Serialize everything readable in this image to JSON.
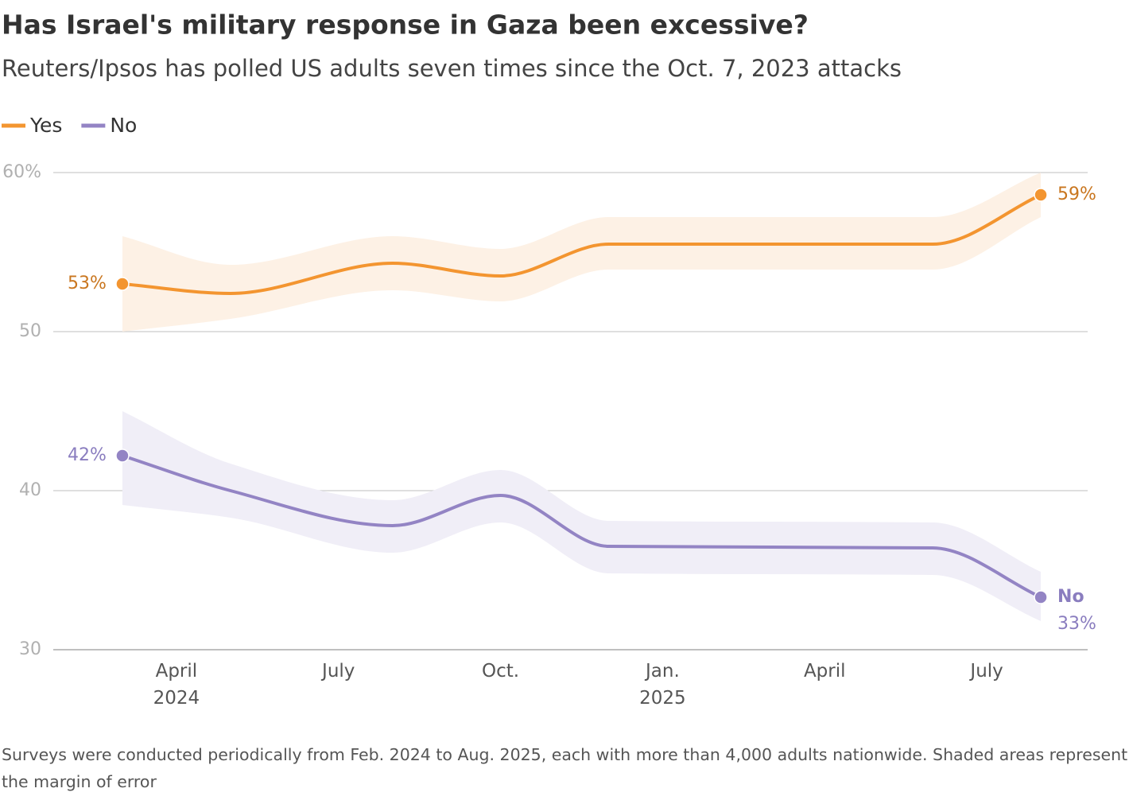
{
  "chart_data": {
    "type": "line",
    "title": "Has Israel's military response in Gaza been excessive?",
    "subtitle": "Reuters/Ipsos has polled US adults seven times since the Oct. 7, 2023 attacks",
    "note": "Surveys were conducted periodically from Feb. 2024 to Aug. 2025, each with more than 4,000 adults nationwide. Shaded areas represent the margin of error",
    "x": [
      "2024-03",
      "2024-05",
      "2024-08",
      "2024-10",
      "2024-12",
      "2025-06",
      "2025-08"
    ],
    "xlim": [
      "2024-02",
      "2025-09"
    ],
    "xticks": [
      {
        "value": "2024-04",
        "label": "April 2024"
      },
      {
        "value": "2024-07",
        "label": "July"
      },
      {
        "value": "2024-10",
        "label": "Oct."
      },
      {
        "value": "2025-01",
        "label": "Jan. 2025"
      },
      {
        "value": "2025-04",
        "label": "April"
      },
      {
        "value": "2025-07",
        "label": "July"
      }
    ],
    "ylim": [
      30,
      60
    ],
    "yticks": [
      {
        "value": 60,
        "label": "60%"
      },
      50,
      40,
      30
    ],
    "grid": true,
    "legend": "top-left",
    "series": [
      {
        "name": "Yes",
        "color": "#f39530",
        "band_color": "#fdf1e5",
        "label_color": "#c9761f",
        "values": [
          53,
          52.4,
          54.3,
          53.5,
          55.5,
          55.5,
          58.6
        ],
        "value_labels": [
          "53%",
          null,
          null,
          null,
          null,
          null,
          "59%"
        ],
        "upper": [
          56,
          54.2,
          56,
          55.2,
          57.2,
          57.2,
          60
        ],
        "lower": [
          50,
          50.8,
          52.6,
          51.9,
          53.9,
          53.9,
          57.2
        ]
      },
      {
        "name": "No",
        "color": "#9384c4",
        "band_color": "#f0eef7",
        "label_color": "#8a7dbf",
        "values": [
          42.2,
          40,
          37.8,
          39.7,
          36.5,
          36.4,
          33.3
        ],
        "value_labels": [
          "42%",
          null,
          null,
          null,
          null,
          null,
          "33%"
        ],
        "upper": [
          45,
          41.7,
          39.4,
          41.3,
          38.1,
          38,
          34.9
        ],
        "lower": [
          39.1,
          38.3,
          36.1,
          38,
          34.8,
          34.7,
          31.8
        ]
      }
    ]
  }
}
